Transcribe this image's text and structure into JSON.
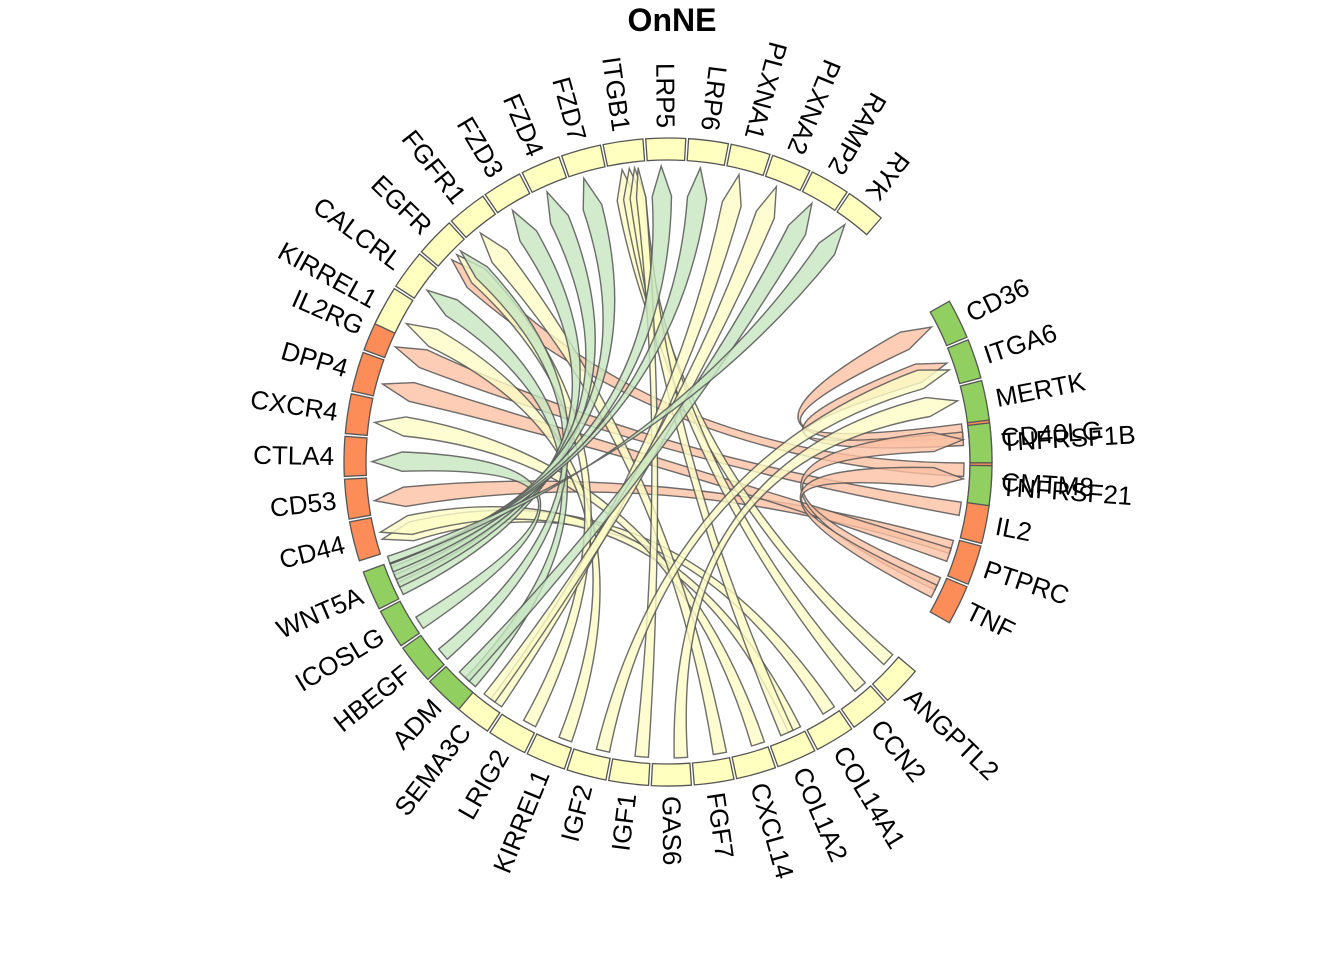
{
  "title": "OnNE",
  "colors": {
    "yellow_arc": "#ffffbf",
    "green_arc": "#91cf60",
    "orange_arc": "#fc8d59",
    "yellow_link": "#fdfdc6",
    "green_link": "#c7e6c0",
    "orange_link": "#fcc0a4"
  },
  "sectors": [
    {
      "name": "CD40LG",
      "group": "orange"
    },
    {
      "name": "CMTM8",
      "group": "orange"
    },
    {
      "name": "IL2",
      "group": "orange"
    },
    {
      "name": "PTPRC",
      "group": "orange"
    },
    {
      "name": "TNF",
      "group": "orange"
    },
    {
      "name": "ANGPTL2",
      "group": "yellow"
    },
    {
      "name": "CCN2",
      "group": "yellow"
    },
    {
      "name": "COL14A1",
      "group": "yellow"
    },
    {
      "name": "COL1A2",
      "group": "yellow"
    },
    {
      "name": "CXCL14",
      "group": "yellow"
    },
    {
      "name": "FGF7",
      "group": "yellow"
    },
    {
      "name": "GAS6",
      "group": "yellow"
    },
    {
      "name": "IGF1",
      "group": "yellow"
    },
    {
      "name": "IGF2",
      "group": "yellow"
    },
    {
      "name": "KIRREL1",
      "group": "yellow"
    },
    {
      "name": "LRIG2",
      "group": "yellow"
    },
    {
      "name": "SEMA3C",
      "group": "yellow"
    },
    {
      "name": "ADM",
      "group": "green"
    },
    {
      "name": "HBEGF",
      "group": "green"
    },
    {
      "name": "ICOSLG",
      "group": "green"
    },
    {
      "name": "WNT5A",
      "group": "green"
    },
    {
      "name": "CD44",
      "group": "orange"
    },
    {
      "name": "CD53",
      "group": "orange"
    },
    {
      "name": "CTLA4",
      "group": "orange"
    },
    {
      "name": "CXCR4",
      "group": "orange"
    },
    {
      "name": "DPP4",
      "group": "orange"
    },
    {
      "name": "IL2RG",
      "group": "orange"
    },
    {
      "name": "KIRREL1",
      "group": "yellow"
    },
    {
      "name": "CALCRL",
      "group": "yellow"
    },
    {
      "name": "EGFR",
      "group": "yellow"
    },
    {
      "name": "FGFR1",
      "group": "yellow"
    },
    {
      "name": "FZD3",
      "group": "yellow"
    },
    {
      "name": "FZD4",
      "group": "yellow"
    },
    {
      "name": "FZD7",
      "group": "yellow"
    },
    {
      "name": "ITGB1",
      "group": "yellow"
    },
    {
      "name": "LRP5",
      "group": "yellow"
    },
    {
      "name": "LRP6",
      "group": "yellow"
    },
    {
      "name": "PLXNA1",
      "group": "yellow"
    },
    {
      "name": "PLXNA2",
      "group": "yellow"
    },
    {
      "name": "RAMP2",
      "group": "yellow"
    },
    {
      "name": "RYK",
      "group": "yellow"
    },
    {
      "name": "CD36",
      "group": "green"
    },
    {
      "name": "ITGA6",
      "group": "green"
    },
    {
      "name": "MERTK",
      "group": "green"
    },
    {
      "name": "TNFRSF1B",
      "group": "green"
    },
    {
      "name": "TNFRSF21",
      "group": "green"
    }
  ],
  "links": [
    {
      "from": "CD40LG",
      "to": "CD36",
      "color": "orange"
    },
    {
      "from": "CD40LG",
      "to": "ITGA6",
      "color": "orange"
    },
    {
      "from": "CMTM8",
      "to": "EGFR",
      "color": "orange"
    },
    {
      "from": "IL2",
      "to": "IL2RG",
      "color": "orange"
    },
    {
      "from": "PTPRC",
      "to": "CD53",
      "color": "orange"
    },
    {
      "from": "PTPRC",
      "to": "DPP4",
      "color": "orange"
    },
    {
      "from": "TNF",
      "to": "TNFRSF1B",
      "color": "orange"
    },
    {
      "from": "TNF",
      "to": "TNFRSF21",
      "color": "orange"
    },
    {
      "from": "ANGPTL2",
      "to": "ITGB1",
      "color": "yellow"
    },
    {
      "from": "CCN2",
      "to": "ITGB1",
      "color": "yellow"
    },
    {
      "from": "COL14A1",
      "to": "CD44",
      "color": "yellow"
    },
    {
      "from": "COL1A2",
      "to": "CD44",
      "color": "yellow"
    },
    {
      "from": "COL1A2",
      "to": "ITGB1",
      "color": "yellow"
    },
    {
      "from": "CXCL14",
      "to": "CXCR4",
      "color": "yellow"
    },
    {
      "from": "FGF7",
      "to": "FGFR1",
      "color": "yellow"
    },
    {
      "from": "GAS6",
      "to": "MERTK",
      "color": "yellow"
    },
    {
      "from": "IGF1",
      "to": "ITGB1",
      "color": "yellow"
    },
    {
      "from": "IGF2",
      "to": "ITGA6",
      "color": "yellow"
    },
    {
      "from": "KIRREL1",
      "to": "KIRREL1",
      "color": "yellow"
    },
    {
      "from": "LRIG2",
      "to": "EGFR",
      "color": "yellow"
    },
    {
      "from": "SEMA3C",
      "to": "PLXNA1",
      "color": "yellow"
    },
    {
      "from": "SEMA3C",
      "to": "PLXNA2",
      "color": "yellow"
    },
    {
      "from": "ADM",
      "to": "CALCRL",
      "color": "green"
    },
    {
      "from": "ADM",
      "to": "RAMP2",
      "color": "green"
    },
    {
      "from": "HBEGF",
      "to": "EGFR",
      "color": "green"
    },
    {
      "from": "ICOSLG",
      "to": "CTLA4",
      "color": "green"
    },
    {
      "from": "WNT5A",
      "to": "FZD3",
      "color": "green"
    },
    {
      "from": "WNT5A",
      "to": "FZD4",
      "color": "green"
    },
    {
      "from": "WNT5A",
      "to": "FZD7",
      "color": "green"
    },
    {
      "from": "WNT5A",
      "to": "LRP5",
      "color": "green"
    },
    {
      "from": "WNT5A",
      "to": "LRP6",
      "color": "green"
    },
    {
      "from": "WNT5A",
      "to": "RYK",
      "color": "green"
    }
  ]
}
